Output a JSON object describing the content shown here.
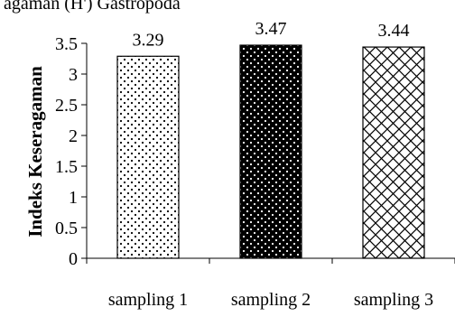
{
  "caption": "agaman (H') Gastropoda",
  "chart_data": {
    "type": "bar",
    "categories": [
      "sampling 1",
      "sampling 2",
      "sampling 3"
    ],
    "values": [
      3.29,
      3.47,
      3.44
    ],
    "data_labels": [
      "3.29",
      "3.47",
      "3.44"
    ],
    "ylabel": "Indeks Keseragaman",
    "xlabel": "",
    "ylim": [
      0,
      3.5
    ],
    "yticks": [
      "0",
      "0.5",
      "1",
      "1.5",
      "2",
      "2.5",
      "3",
      "3.5"
    ],
    "ytick_values": [
      0,
      0.5,
      1,
      1.5,
      2,
      2.5,
      3,
      3.5
    ],
    "grid": false,
    "legend": "none",
    "bar_patterns": [
      "dotted-light",
      "dark-dotted",
      "crosshatch"
    ],
    "colors": {
      "bar_border": "#000000",
      "pattern_ink": "#000000",
      "background": "#ffffff"
    }
  }
}
